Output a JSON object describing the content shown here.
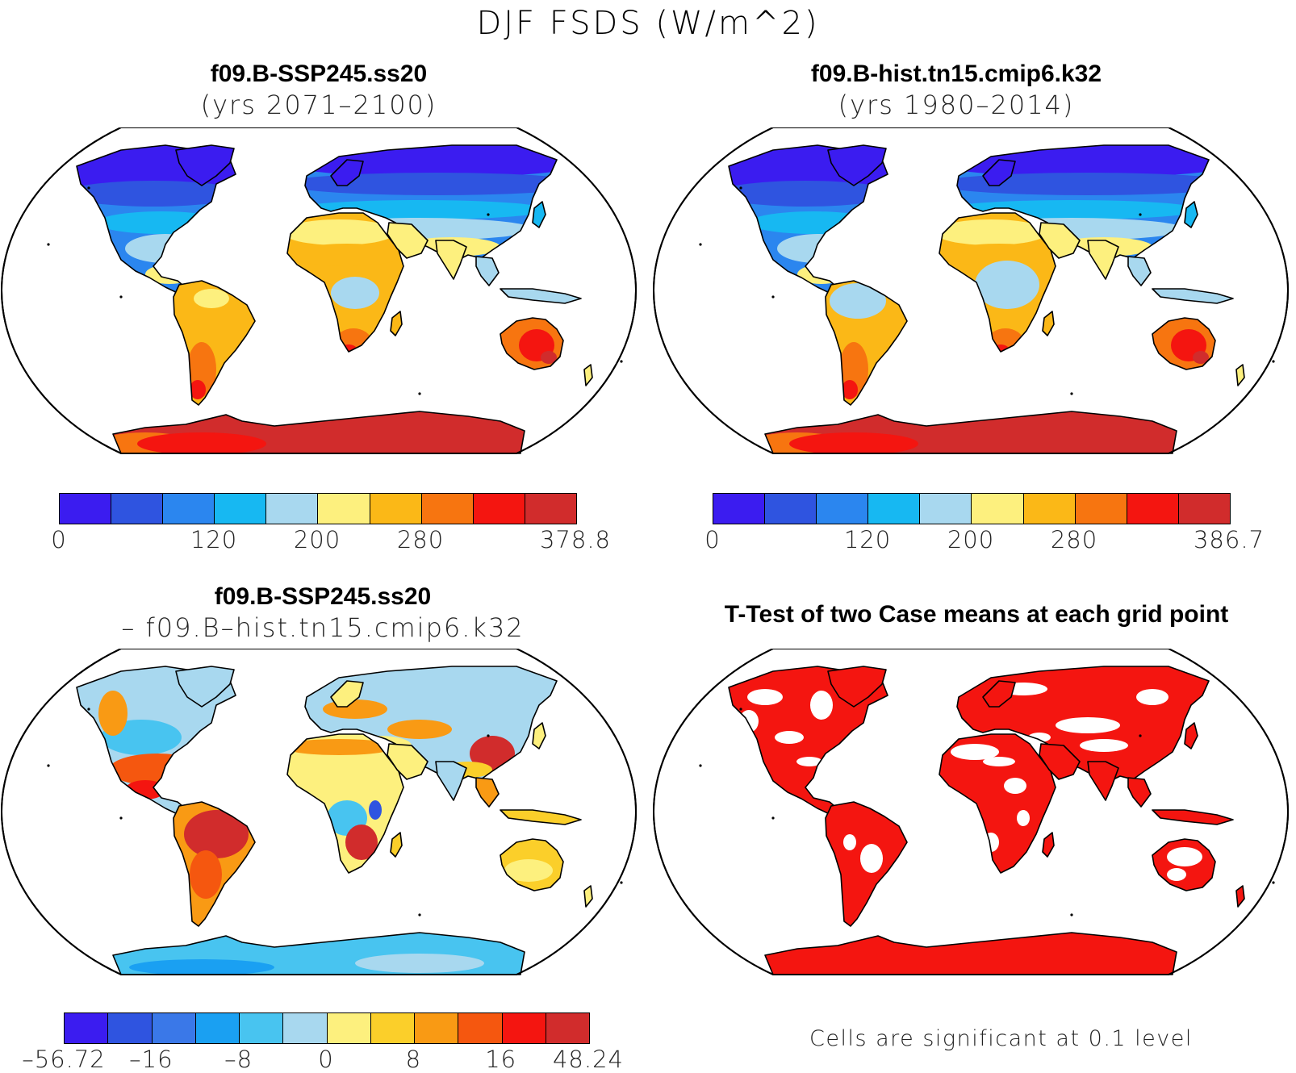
{
  "figure": {
    "title": "DJF FSDS (W/m^2)"
  },
  "panels": [
    {
      "id": "p1",
      "title_line1": "f09.B-SSP245.ss20",
      "title_line2": "(yrs 2071–2100)",
      "scheme": "abs",
      "tropics_mode": "ssp",
      "colorbar": {
        "colors": [
          "#3b1cf0",
          "#2f54e0",
          "#2b86ef",
          "#17b8f2",
          "#a8d8ef",
          "#fdf07e",
          "#fbb817",
          "#f77510",
          "#f41510",
          "#d12c2c"
        ],
        "labels": [
          "0",
          "120",
          "200",
          "280",
          "378.8"
        ],
        "label_positions": [
          0,
          3,
          5,
          7,
          10
        ]
      }
    },
    {
      "id": "p2",
      "title_line1": "f09.B-hist.tn15.cmip6.k32",
      "title_line2": "(yrs 1980–2014)",
      "scheme": "abs",
      "tropics_mode": "hist",
      "colorbar": {
        "colors": [
          "#3b1cf0",
          "#2f54e0",
          "#2b86ef",
          "#17b8f2",
          "#a8d8ef",
          "#fdf07e",
          "#fbb817",
          "#f77510",
          "#f41510",
          "#d12c2c"
        ],
        "labels": [
          "0",
          "120",
          "200",
          "280",
          "386.7"
        ],
        "label_positions": [
          0,
          3,
          5,
          7,
          10
        ]
      }
    },
    {
      "id": "p3",
      "title_line1": "f09.B-SSP245.ss20",
      "title_line2": "– f09.B–hist.tn15.cmip6.k32",
      "scheme": "diff",
      "colorbar": {
        "colors": [
          "#3b1cf0",
          "#2f54e0",
          "#3a78e8",
          "#1aa0f2",
          "#48c4f0",
          "#a8d8ef",
          "#fdf07e",
          "#fbcf2a",
          "#f99a14",
          "#f5570f",
          "#f41510",
          "#d12c2c"
        ],
        "labels": [
          "–56.72",
          "–16",
          "–8",
          "0",
          "8",
          "16",
          "48.24"
        ],
        "label_positions": [
          0,
          2,
          4,
          6,
          8,
          10,
          12
        ]
      }
    },
    {
      "id": "p4",
      "title_line1": "T-Test of two Case means at each grid point",
      "title_line2": "",
      "scheme": "sig",
      "note": "Cells are significant at 0.1 level"
    }
  ]
}
